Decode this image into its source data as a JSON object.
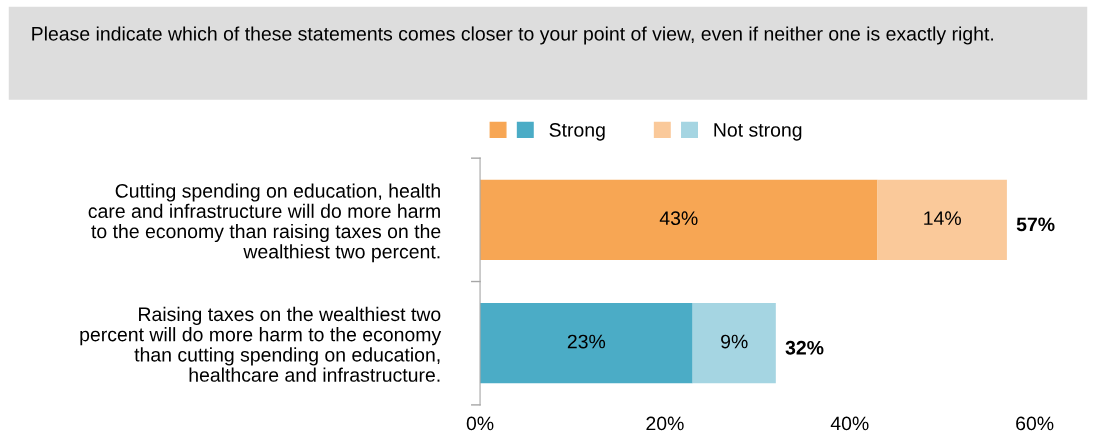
{
  "chart_data": {
    "type": "bar",
    "orientation": "horizontal",
    "stacked": true,
    "title": "Please indicate which of these statements comes closer to your point of view, even if neither one is exactly right.",
    "categories": [
      "Cutting spending on education, health\ncare and infrastructure will do more harm\nto the economy than raising taxes on the\nwealthiest two percent.",
      "Raising taxes on the wealthiest two\npercent will do more harm to the economy\nthan cutting spending on education,\nhealthcare and infrastructure."
    ],
    "series": [
      {
        "name": "Strong",
        "colors": [
          "#f7a654",
          "#4bacc6"
        ],
        "values": [
          43,
          23
        ],
        "value_labels": [
          "43%",
          "23%"
        ]
      },
      {
        "name": "Not strong",
        "colors": [
          "#fac99a",
          "#a5d5e2"
        ],
        "values": [
          14,
          9
        ],
        "value_labels": [
          "14%",
          "9%"
        ]
      }
    ],
    "totals": [
      "57%",
      "32%"
    ],
    "xlim": [
      0,
      60
    ],
    "xticks": [
      {
        "value": 0,
        "label": "0%"
      },
      {
        "value": 20,
        "label": "20%"
      },
      {
        "value": 40,
        "label": "40%"
      },
      {
        "value": 60,
        "label": "60%"
      }
    ],
    "legend": "top",
    "grid": false
  }
}
